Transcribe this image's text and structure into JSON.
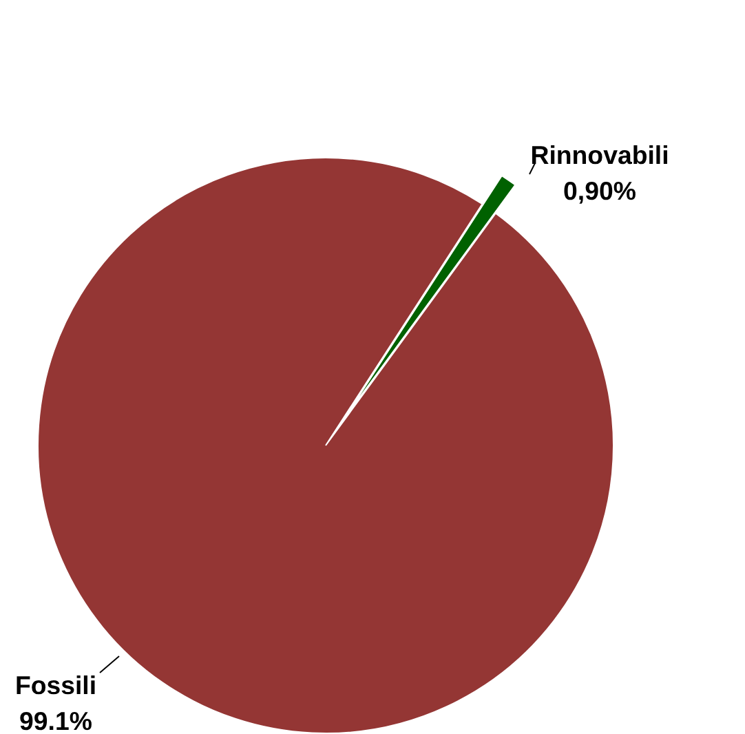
{
  "chart_data": {
    "type": "pie",
    "categories": [
      "Fossili",
      "Rinnovabili"
    ],
    "values": [
      99.1,
      0.9
    ],
    "value_labels": [
      "99.1%",
      "0,90%"
    ],
    "colors": [
      "#943634",
      "#006100"
    ]
  }
}
